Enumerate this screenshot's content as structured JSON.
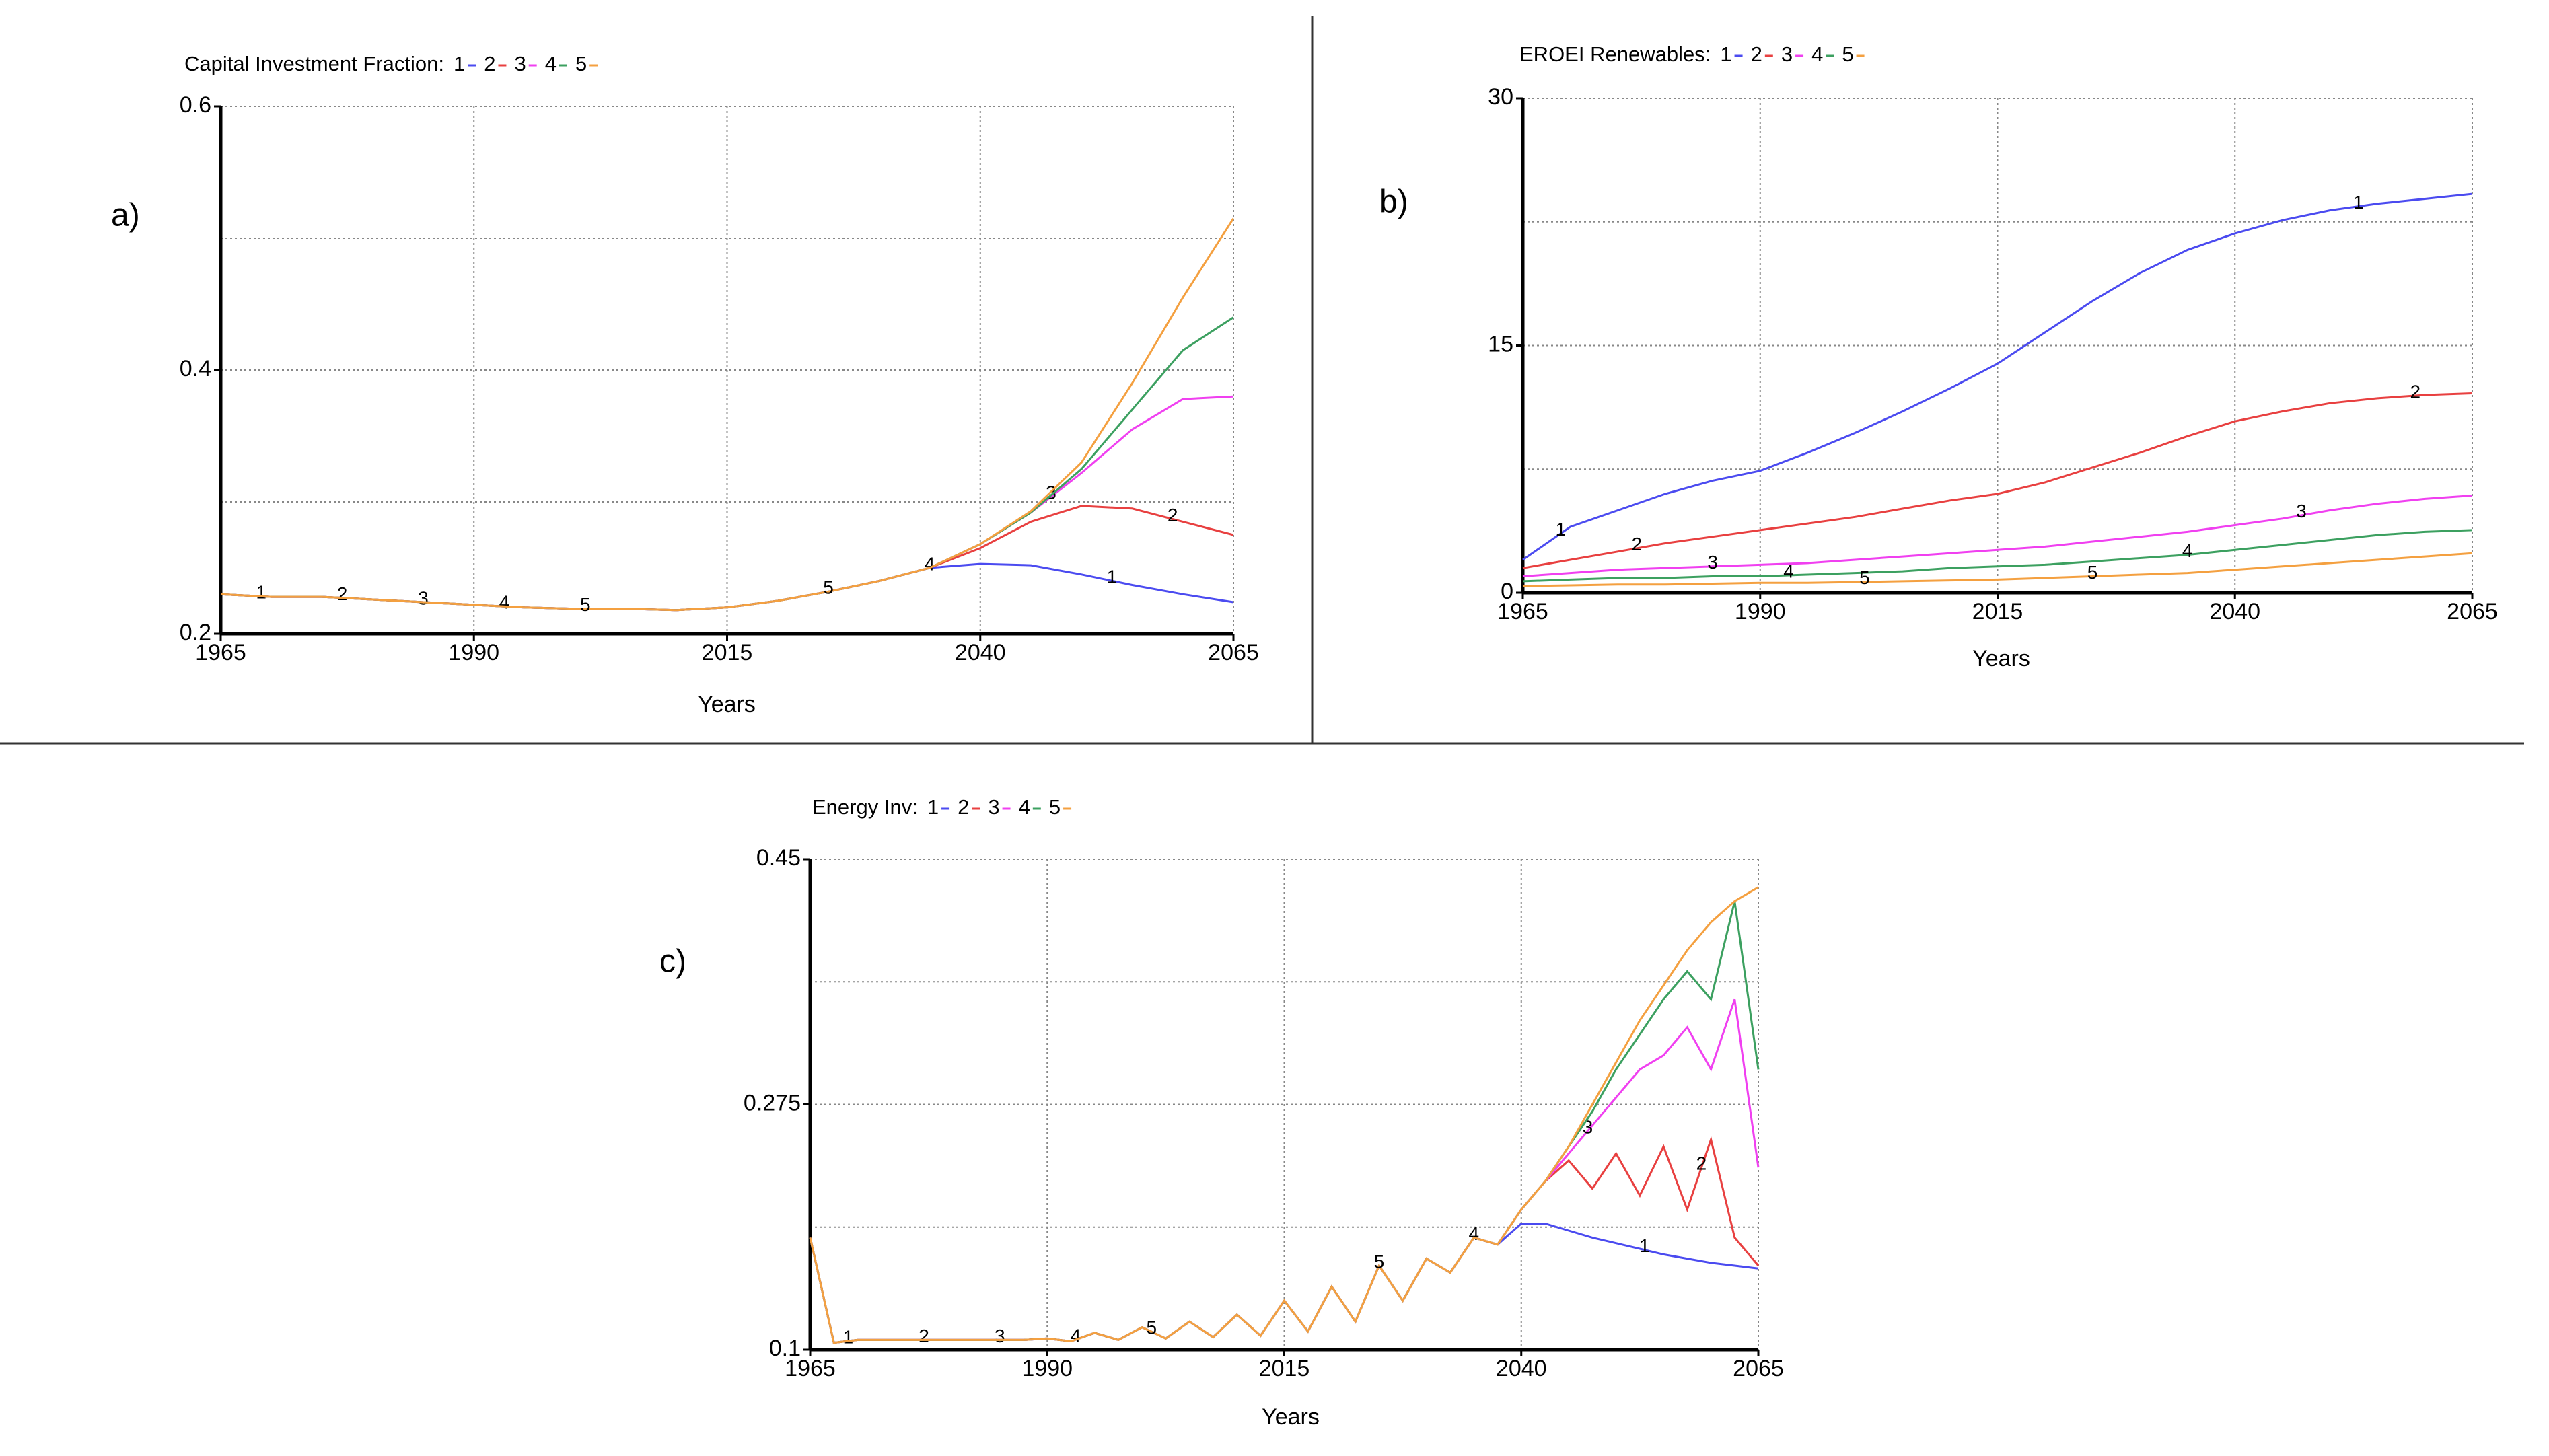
{
  "chart_data": [
    {
      "type": "line",
      "panel_label": "a)",
      "title": "Capital Investment Fraction:",
      "xlabel": "Years",
      "x": [
        1965,
        1970,
        1975,
        1980,
        1985,
        1990,
        1995,
        2000,
        2005,
        2010,
        2015,
        2020,
        2025,
        2030,
        2035,
        2040,
        2045,
        2050,
        2055,
        2060,
        2065
      ],
      "xlim": [
        1965,
        2065
      ],
      "xticks": [
        1965,
        1990,
        2015,
        2040,
        2065
      ],
      "ylim": [
        0.2,
        0.6
      ],
      "yticks": [
        0.2,
        0.4,
        0.6
      ],
      "grid": true,
      "series": [
        {
          "name": "1",
          "color": "#4b4bf0",
          "values": [
            0.23,
            0.228,
            0.228,
            0.226,
            0.224,
            0.222,
            0.22,
            0.219,
            0.219,
            0.218,
            0.22,
            0.225,
            0.232,
            0.24,
            0.25,
            0.253,
            0.252,
            0.245,
            0.237,
            0.23,
            0.224
          ]
        },
        {
          "name": "2",
          "color": "#e84040",
          "values": [
            0.23,
            0.228,
            0.228,
            0.226,
            0.224,
            0.222,
            0.22,
            0.219,
            0.219,
            0.218,
            0.22,
            0.225,
            0.232,
            0.24,
            0.25,
            0.265,
            0.285,
            0.297,
            0.295,
            0.285,
            0.275
          ]
        },
        {
          "name": "3",
          "color": "#f040f0",
          "values": [
            0.23,
            0.228,
            0.228,
            0.226,
            0.224,
            0.222,
            0.22,
            0.219,
            0.219,
            0.218,
            0.22,
            0.225,
            0.232,
            0.24,
            0.25,
            0.268,
            0.292,
            0.322,
            0.355,
            0.378,
            0.38
          ]
        },
        {
          "name": "4",
          "color": "#3ca060",
          "values": [
            0.23,
            0.228,
            0.228,
            0.226,
            0.224,
            0.222,
            0.22,
            0.219,
            0.219,
            0.218,
            0.22,
            0.225,
            0.232,
            0.24,
            0.25,
            0.268,
            0.292,
            0.325,
            0.37,
            0.415,
            0.44
          ]
        },
        {
          "name": "5",
          "color": "#f4a040",
          "values": [
            0.23,
            0.228,
            0.228,
            0.226,
            0.224,
            0.222,
            0.22,
            0.219,
            0.219,
            0.218,
            0.22,
            0.225,
            0.232,
            0.24,
            0.25,
            0.268,
            0.293,
            0.33,
            0.39,
            0.455,
            0.515
          ]
        }
      ]
    },
    {
      "type": "line",
      "panel_label": "b)",
      "title": "EROEI Renewables:",
      "xlabel": "Years",
      "x": [
        1965,
        1970,
        1975,
        1980,
        1985,
        1990,
        1995,
        2000,
        2005,
        2010,
        2015,
        2020,
        2025,
        2030,
        2035,
        2040,
        2045,
        2050,
        2055,
        2060,
        2065
      ],
      "xlim": [
        1965,
        2065
      ],
      "xticks": [
        1965,
        1990,
        2015,
        2040,
        2065
      ],
      "ylim": [
        0,
        30
      ],
      "yticks": [
        0,
        15,
        30
      ],
      "grid": true,
      "series": [
        {
          "name": "1",
          "color": "#4b4bf0",
          "values": [
            2.0,
            4.0,
            5.0,
            6.0,
            6.8,
            7.4,
            8.5,
            9.7,
            11.0,
            12.4,
            13.9,
            15.8,
            17.7,
            19.4,
            20.8,
            21.8,
            22.6,
            23.2,
            23.6,
            23.9,
            24.2
          ]
        },
        {
          "name": "2",
          "color": "#e84040",
          "values": [
            1.5,
            2.0,
            2.5,
            3.0,
            3.4,
            3.8,
            4.2,
            4.6,
            5.1,
            5.6,
            6.0,
            6.7,
            7.6,
            8.5,
            9.5,
            10.4,
            11.0,
            11.5,
            11.8,
            12.0,
            12.1
          ]
        },
        {
          "name": "3",
          "color": "#f040f0",
          "values": [
            1.0,
            1.2,
            1.4,
            1.5,
            1.6,
            1.7,
            1.8,
            2.0,
            2.2,
            2.4,
            2.6,
            2.8,
            3.1,
            3.4,
            3.7,
            4.1,
            4.5,
            5.0,
            5.4,
            5.7,
            5.9
          ]
        },
        {
          "name": "4",
          "color": "#3ca060",
          "values": [
            0.7,
            0.8,
            0.9,
            0.9,
            1.0,
            1.0,
            1.1,
            1.2,
            1.3,
            1.5,
            1.6,
            1.7,
            1.9,
            2.1,
            2.3,
            2.6,
            2.9,
            3.2,
            3.5,
            3.7,
            3.8
          ]
        },
        {
          "name": "5",
          "color": "#f4a040",
          "values": [
            0.4,
            0.45,
            0.5,
            0.5,
            0.55,
            0.6,
            0.6,
            0.65,
            0.7,
            0.75,
            0.8,
            0.9,
            1.0,
            1.1,
            1.2,
            1.4,
            1.6,
            1.8,
            2.0,
            2.2,
            2.4
          ]
        }
      ]
    },
    {
      "type": "line",
      "panel_label": "c)",
      "title": "Energy Inv:",
      "xlabel": "Years",
      "x": [
        1965,
        1967.5,
        1970,
        1972.5,
        1975,
        1977.5,
        1980,
        1982.5,
        1985,
        1987.5,
        1990,
        1992.5,
        1995,
        1997.5,
        2000,
        2002.5,
        2005,
        2007.5,
        2010,
        2012.5,
        2015,
        2017.5,
        2020,
        2022.5,
        2025,
        2027.5,
        2030,
        2032.5,
        2035,
        2037.5,
        2040,
        2042.5,
        2045,
        2047.5,
        2050,
        2052.5,
        2055,
        2057.5,
        2060,
        2062.5,
        2065
      ],
      "xlim": [
        1965,
        2065
      ],
      "xticks": [
        1965,
        1990,
        2015,
        2040,
        2065
      ],
      "ylim": [
        0.1,
        0.45
      ],
      "yticks": [
        0.1,
        0.275,
        0.45
      ],
      "grid": true,
      "series": [
        {
          "name": "1",
          "color": "#4b4bf0",
          "values": [
            0.18,
            0.105,
            0.107,
            0.107,
            0.107,
            0.107,
            0.107,
            0.107,
            0.107,
            0.107,
            0.108,
            0.106,
            0.112,
            0.107,
            0.116,
            0.108,
            0.12,
            0.109,
            0.125,
            0.11,
            0.135,
            0.113,
            0.145,
            0.12,
            0.16,
            0.135,
            0.165,
            0.155,
            0.18,
            0.175,
            0.19,
            0.19,
            0.185,
            0.18,
            0.176,
            0.172,
            0.168,
            0.165,
            0.162,
            0.16,
            0.158
          ]
        },
        {
          "name": "2",
          "color": "#e84040",
          "values": [
            0.18,
            0.105,
            0.107,
            0.107,
            0.107,
            0.107,
            0.107,
            0.107,
            0.107,
            0.107,
            0.108,
            0.106,
            0.112,
            0.107,
            0.116,
            0.108,
            0.12,
            0.109,
            0.125,
            0.11,
            0.135,
            0.113,
            0.145,
            0.12,
            0.16,
            0.135,
            0.165,
            0.155,
            0.18,
            0.175,
            0.2,
            0.22,
            0.235,
            0.215,
            0.24,
            0.21,
            0.245,
            0.2,
            0.25,
            0.18,
            0.16
          ]
        },
        {
          "name": "3",
          "color": "#f040f0",
          "values": [
            0.18,
            0.105,
            0.107,
            0.107,
            0.107,
            0.107,
            0.107,
            0.107,
            0.107,
            0.107,
            0.108,
            0.106,
            0.112,
            0.107,
            0.116,
            0.108,
            0.12,
            0.109,
            0.125,
            0.11,
            0.135,
            0.113,
            0.145,
            0.12,
            0.16,
            0.135,
            0.165,
            0.155,
            0.18,
            0.175,
            0.2,
            0.22,
            0.24,
            0.26,
            0.28,
            0.3,
            0.31,
            0.33,
            0.3,
            0.35,
            0.23
          ]
        },
        {
          "name": "4",
          "color": "#3ca060",
          "values": [
            0.18,
            0.105,
            0.107,
            0.107,
            0.107,
            0.107,
            0.107,
            0.107,
            0.107,
            0.107,
            0.108,
            0.106,
            0.112,
            0.107,
            0.116,
            0.108,
            0.12,
            0.109,
            0.125,
            0.11,
            0.135,
            0.113,
            0.145,
            0.12,
            0.16,
            0.135,
            0.165,
            0.155,
            0.18,
            0.175,
            0.2,
            0.22,
            0.245,
            0.27,
            0.3,
            0.325,
            0.35,
            0.37,
            0.35,
            0.42,
            0.3
          ]
        },
        {
          "name": "5",
          "color": "#f4a040",
          "values": [
            0.18,
            0.105,
            0.107,
            0.107,
            0.107,
            0.107,
            0.107,
            0.107,
            0.107,
            0.107,
            0.108,
            0.106,
            0.112,
            0.107,
            0.116,
            0.108,
            0.12,
            0.109,
            0.125,
            0.11,
            0.135,
            0.113,
            0.145,
            0.12,
            0.16,
            0.135,
            0.165,
            0.155,
            0.18,
            0.175,
            0.2,
            0.22,
            0.245,
            0.275,
            0.305,
            0.335,
            0.36,
            0.385,
            0.405,
            0.42,
            0.43
          ]
        }
      ]
    }
  ]
}
